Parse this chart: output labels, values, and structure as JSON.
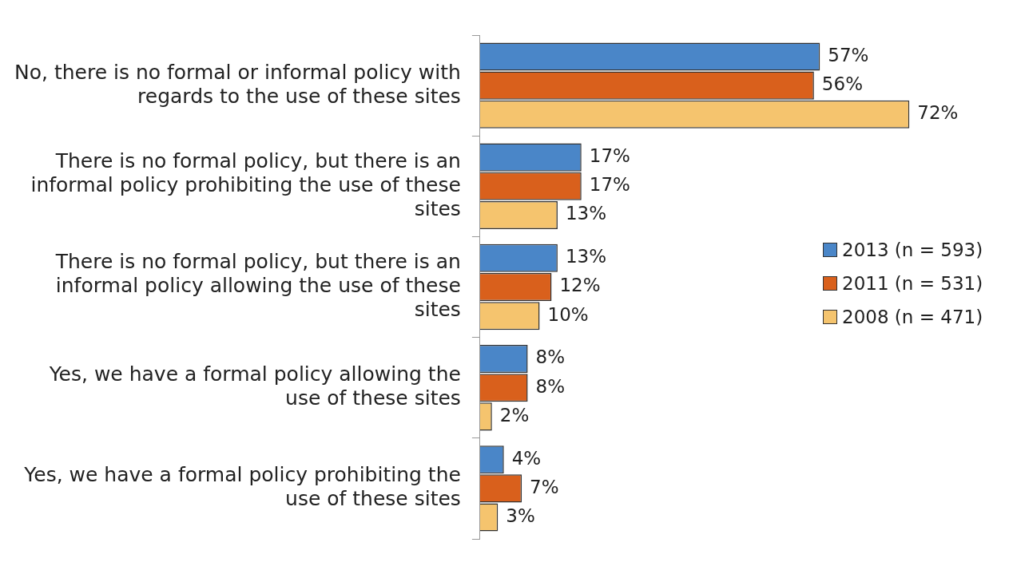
{
  "chart_data": {
    "type": "bar",
    "orientation": "horizontal",
    "categories": [
      "No, there is no formal or informal policy with regards to the use of these sites",
      "There is no formal policy, but there is an informal policy prohibiting the use of these sites",
      "There is no formal policy, but there is an informal policy allowing the use of these sites",
      "Yes, we have a formal policy allowing the use of these sites",
      "Yes, we have a formal policy prohibiting the use of these sites"
    ],
    "series": [
      {
        "name": "2013 (n = 593)",
        "color": "#4a86c8",
        "values": [
          57,
          17,
          13,
          8,
          4
        ],
        "value_labels": [
          "57%",
          "17%",
          "13%",
          "8%",
          "4%"
        ]
      },
      {
        "name": "2011 (n = 531)",
        "color": "#d9601c",
        "values": [
          56,
          17,
          12,
          8,
          7
        ],
        "value_labels": [
          "56%",
          "17%",
          "12%",
          "8%",
          "7%"
        ]
      },
      {
        "name": "2008 (n = 471)",
        "color": "#f5c46e",
        "values": [
          72,
          13,
          10,
          2,
          3
        ],
        "value_labels": [
          "72%",
          "13%",
          "10%",
          "2%",
          "3%"
        ]
      }
    ],
    "legend": "right",
    "grid": false
  }
}
